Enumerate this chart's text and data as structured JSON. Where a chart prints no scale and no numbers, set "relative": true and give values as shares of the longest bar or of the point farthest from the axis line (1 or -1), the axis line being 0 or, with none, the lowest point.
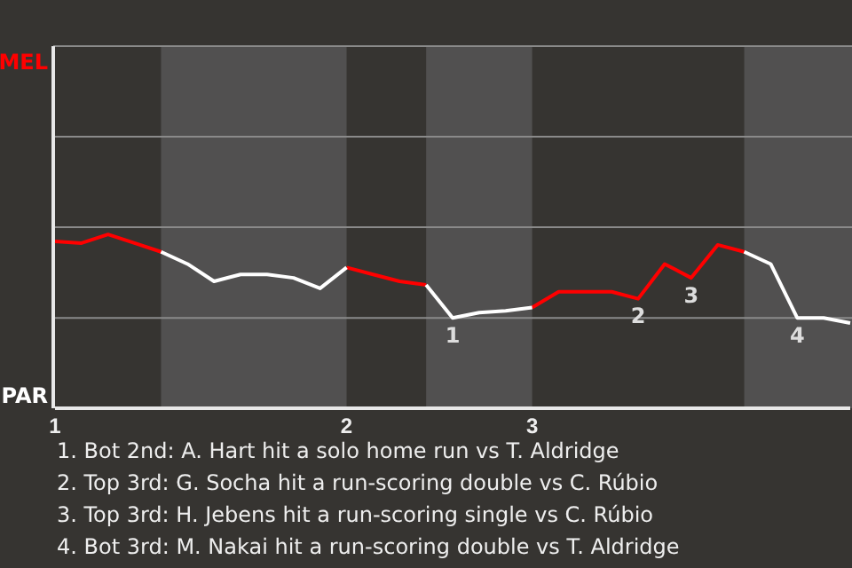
{
  "chart_data": {
    "type": "line",
    "relative": true,
    "categories": [
      "1",
      null,
      null,
      null,
      null,
      null,
      null,
      null,
      null,
      null,
      null,
      "2",
      null,
      null,
      null,
      null,
      null,
      null,
      "3",
      null,
      null,
      null,
      null,
      null,
      null,
      null,
      null,
      null,
      null,
      null,
      null
    ],
    "series": [
      {
        "color": "#ff0000",
        "values": [
          0.96,
          0.95,
          1,
          0.95,
          0.9,
          null,
          null,
          null,
          null,
          null,
          null,
          0.81,
          0.77,
          0.73,
          0.71,
          null,
          null,
          null,
          0.58,
          0.67,
          0.67,
          0.67,
          0.63,
          0.83,
          0.75,
          0.94,
          0.9,
          null,
          null,
          null,
          null
        ]
      },
      {
        "color": "#ffffff",
        "values": [
          null,
          null,
          null,
          null,
          0.9,
          0.83,
          0.73,
          0.77,
          0.77,
          0.75,
          0.69,
          0.81,
          null,
          null,
          0.71,
          0.52,
          0.55,
          0.56,
          0.58,
          null,
          null,
          null,
          null,
          null,
          null,
          null,
          0.9,
          0.83,
          0.52,
          0.52,
          0.49
        ]
      }
    ],
    "marker": "none",
    "line_style": "solid",
    "ref_lines": [
      {
        "axis": "y",
        "value": 0.52,
        "color": "#8a8a8a"
      }
    ],
    "annotations": [
      "MEL",
      "PAR",
      {
        "text": "1",
        "y": 0.52
      },
      {
        "text": "2",
        "y": 0.63
      },
      {
        "text": "3",
        "y": 0.75
      },
      {
        "text": "4",
        "y": 0.52
      },
      "1. Bot 2nd: A. Hart hit a solo home run vs T. Aldridge",
      "2. Top 3rd: G. Socha hit a run-scoring double vs C. Rúbio",
      "3. Top 3rd: H. Jebens hit a run-scoring single vs C. Rúbio",
      "4. Bot 3rd: M. Nakai hit a run-scoring double vs T. Aldridge"
    ]
  }
}
